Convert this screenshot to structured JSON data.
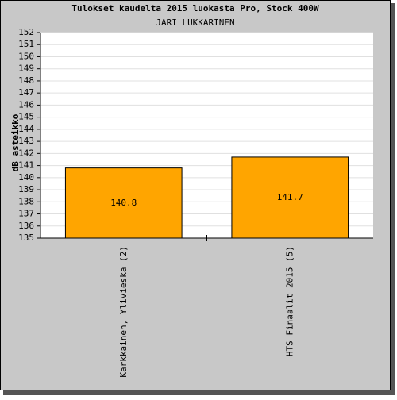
{
  "chart_data": {
    "type": "bar",
    "title": "Tulokset kaudelta 2015 luokasta Pro, Stock 400W",
    "subtitle": "JARI LUKKARINEN",
    "y_label": "dB asteikko",
    "categories": [
      "Karkkainen, Ylivieska (2)",
      "HTS Finaalit 2015 (5)"
    ],
    "values": [
      140.8,
      141.7
    ],
    "color": "#ffa500",
    "ylim": [
      135,
      152
    ],
    "yticks": [
      135,
      136,
      137,
      138,
      139,
      140,
      141,
      142,
      143,
      144,
      145,
      146,
      147,
      148,
      149,
      150,
      151,
      152
    ],
    "grid": true
  }
}
